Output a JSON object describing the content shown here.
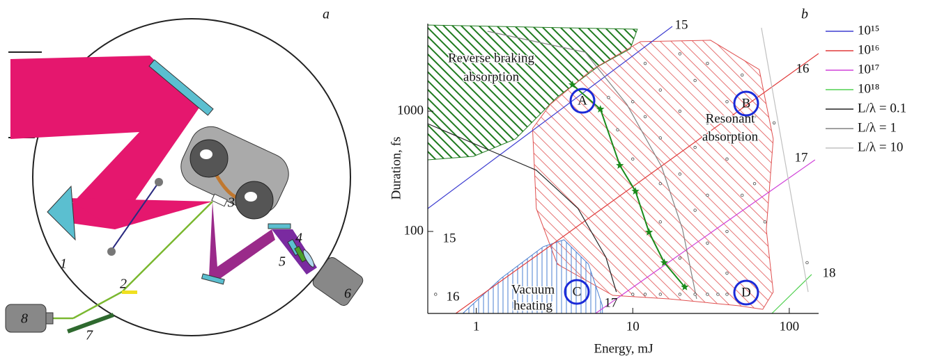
{
  "panel_a": {
    "panel_label": "a",
    "labels": [
      "1",
      "2",
      "3",
      "4",
      "5",
      "6",
      "7",
      "8"
    ]
  },
  "chart_data": {
    "type": "line",
    "panel_label": "b",
    "x_label": "Energy, mJ",
    "y_label": "Duration, fs",
    "log_x": true,
    "log_y": true,
    "xlim": [
      0.49,
      154
    ],
    "ylim": [
      20.8,
      5350
    ],
    "xticks": [
      1,
      10,
      100
    ],
    "yticks": [
      100,
      1000
    ],
    "series": [
      {
        "name": "10¹⁵",
        "color": "#3c3cd0",
        "x": [
          0.49,
          17.9
        ],
        "values": [
          155,
          5070
        ]
      },
      {
        "name": "10¹⁶",
        "color": "#e03a3a",
        "x": [
          0.74,
          154
        ],
        "values": [
          20.8,
          3020
        ]
      },
      {
        "name": "10¹⁷",
        "color": "#d040d8",
        "x": [
          5.78,
          146
        ],
        "values": [
          20.8,
          394
        ]
      },
      {
        "name": "10¹⁸",
        "color": "#50d050",
        "x": [
          77.4,
          139
        ],
        "values": [
          20.8,
          43.9
        ]
      },
      {
        "name": "L/λ = 0.1",
        "color": "#222222",
        "x": [
          0.49,
          1.18,
          2.42,
          4.47,
          6.74,
          7.86
        ],
        "values": [
          787,
          481,
          323,
          155,
          61,
          31.4
        ]
      },
      {
        "name": "L/λ = 1",
        "color": "#808080",
        "x": [
          1.18,
          4.95,
          9.17,
          15.3,
          20.8,
          25.6
        ],
        "values": [
          4620,
          3100,
          1140,
          345,
          104,
          27.5
        ]
      },
      {
        "name": "L/λ = 10",
        "color": "#c0c0c0",
        "x": [
          66.4,
          132
        ],
        "values": [
          4940,
          31.4
        ]
      }
    ],
    "regions": [
      {
        "label_lines": [
          "Reverse braking",
          "absorption"
        ],
        "color": "#1f7a1f",
        "x": [
          0.49,
          10.7,
          9.64,
          6.08,
          3.29,
          1.78,
          0.96,
          0.49
        ],
        "values": [
          5210,
          4810,
          3310,
          2380,
          1310,
          587,
          421,
          394
        ]
      },
      {
        "label_lines": [
          "Resonant",
          "absorption"
        ],
        "color": "#e05050",
        "x": [
          2.29,
          2.97,
          5.49,
          11.2,
          31.4,
          64.3,
          79,
          71.3,
          79,
          67.7,
          47.3,
          16.9,
          7.46,
          3.29,
          2.42
        ],
        "values": [
          717,
          1140,
          2220,
          3790,
          3890,
          2220,
          587,
          104,
          31.4,
          22.5,
          24.1,
          27.5,
          29.4,
          53.5,
          155
        ]
      },
      {
        "label_lines": [
          "Vacuum",
          "heating"
        ],
        "color": "#4a7fd0",
        "x": [
          0.82,
          1.45,
          2.68,
          3.64,
          5.21,
          6.4,
          6.4
        ],
        "values": [
          20.8,
          41,
          74.7,
          85.3,
          53.5,
          24.1,
          20.8
        ]
      }
    ],
    "points": {
      "color": "#444444",
      "x": [
        7,
        8,
        10,
        10,
        12,
        12,
        15,
        15,
        15,
        15,
        20,
        20,
        20,
        20,
        25,
        25,
        25,
        30,
        30,
        30,
        30,
        40,
        40,
        40,
        40,
        50,
        50,
        50,
        60,
        60,
        70,
        80,
        130,
        10,
        12,
        15,
        20,
        25,
        30,
        35,
        40,
        0.55
      ],
      "values": [
        1300,
        700,
        1200,
        400,
        2500,
        900,
        1500,
        600,
        250,
        120,
        3000,
        1000,
        300,
        60,
        1800,
        500,
        150,
        2500,
        800,
        200,
        80,
        1200,
        400,
        100,
        45,
        2000,
        600,
        200,
        900,
        250,
        120,
        800,
        55,
        30,
        30,
        30,
        30,
        30,
        30,
        30,
        30,
        30
      ]
    },
    "trajectory": {
      "color": "#1a8a1a",
      "x": [
        4.12,
        6.21,
        8.27,
        10.4,
        12.7,
        15.9,
        21.5
      ],
      "values": [
        1660,
        1040,
        354,
        216,
        98.6,
        55,
        34.5
      ]
    },
    "markers": [
      "A",
      "B",
      "C",
      "D"
    ],
    "line_labels": [
      "15",
      "15",
      "16",
      "16",
      "17",
      "17",
      "18"
    ]
  }
}
